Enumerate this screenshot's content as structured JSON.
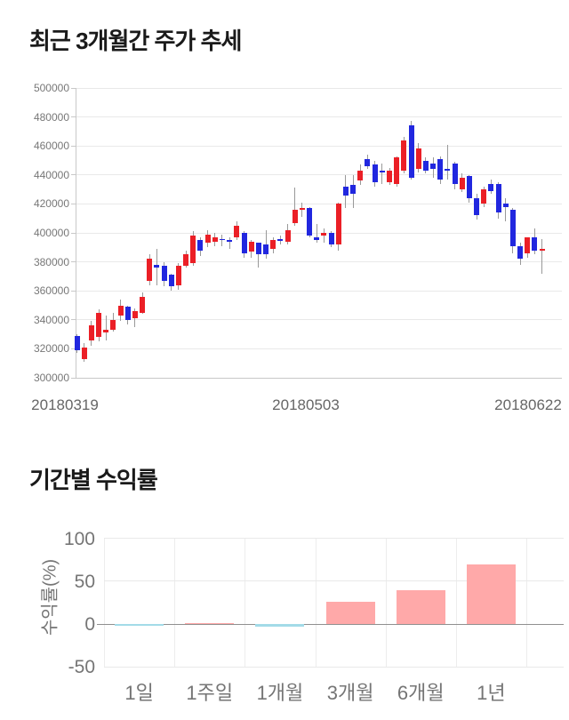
{
  "price_chart": {
    "title": "최근 3개월간 주가 추세"
  },
  "returns_chart": {
    "title": "기간별 수익률",
    "ylabel": "수익률(%)"
  },
  "chart_data": [
    {
      "type": "candlestick",
      "title": "최근 3개월간 주가 추세",
      "ylabel": "",
      "xlabel": "",
      "ylim": [
        300000,
        500000
      ],
      "y_tick_step": 20000,
      "y_ticks": [
        "500000",
        "480000",
        "460000",
        "440000",
        "420000",
        "400000",
        "380000",
        "360000",
        "340000",
        "320000",
        "300000"
      ],
      "x_ticks": [
        "20180319",
        "20180503",
        "20180622"
      ],
      "grid": true,
      "up_color": "#eb1f26",
      "down_color": "#2127df",
      "wick_color": "#999999",
      "candles_format": [
        "open",
        "high",
        "low",
        "close"
      ],
      "candles": [
        [
          329000,
          330000,
          317000,
          319000
        ],
        [
          313000,
          324000,
          311000,
          321000
        ],
        [
          326000,
          339000,
          322000,
          336000
        ],
        [
          328000,
          347000,
          325000,
          345000
        ],
        [
          331000,
          343000,
          326000,
          333000
        ],
        [
          333000,
          345000,
          332000,
          340000
        ],
        [
          343000,
          354000,
          339000,
          350000
        ],
        [
          349000,
          350000,
          337000,
          340000
        ],
        [
          341000,
          348000,
          335000,
          346000
        ],
        [
          345000,
          359000,
          344000,
          356000
        ],
        [
          367000,
          385000,
          364000,
          382000
        ],
        [
          378000,
          389000,
          364000,
          376000
        ],
        [
          377000,
          380000,
          363000,
          367000
        ],
        [
          371000,
          372000,
          360000,
          363000
        ],
        [
          364000,
          379000,
          361000,
          377000
        ],
        [
          377000,
          388000,
          376000,
          385000
        ],
        [
          379000,
          401000,
          377000,
          398000
        ],
        [
          395000,
          397000,
          384000,
          388000
        ],
        [
          393000,
          402000,
          390000,
          399000
        ],
        [
          394000,
          400000,
          391000,
          397000
        ],
        [
          396000,
          399000,
          391000,
          395000
        ],
        [
          395000,
          397000,
          389000,
          394000
        ],
        [
          397000,
          408000,
          395000,
          405000
        ],
        [
          400000,
          401000,
          383000,
          386000
        ],
        [
          387000,
          395000,
          383000,
          394000
        ],
        [
          393000,
          393000,
          376000,
          385000
        ],
        [
          392000,
          402000,
          382000,
          385000
        ],
        [
          389000,
          397000,
          386000,
          395000
        ],
        [
          396000,
          398000,
          392000,
          394500
        ],
        [
          394000,
          406000,
          392000,
          402000
        ],
        [
          407000,
          431000,
          405000,
          416000
        ],
        [
          416000,
          421000,
          411000,
          417000
        ],
        [
          417000,
          418000,
          397000,
          398000
        ],
        [
          397000,
          406000,
          393000,
          395000
        ],
        [
          398000,
          403000,
          393000,
          400000
        ],
        [
          400000,
          401000,
          390000,
          392000
        ],
        [
          392000,
          421000,
          388000,
          420000
        ],
        [
          432000,
          440000,
          417000,
          426000
        ],
        [
          433000,
          440000,
          417000,
          427000
        ],
        [
          436000,
          447000,
          433000,
          443000
        ],
        [
          451000,
          454000,
          444000,
          446000
        ],
        [
          447000,
          450000,
          432000,
          435000
        ],
        [
          443000,
          448000,
          434000,
          441500
        ],
        [
          435000,
          445000,
          433000,
          443000
        ],
        [
          434000,
          453000,
          432000,
          452000
        ],
        [
          443000,
          466000,
          441000,
          464000
        ],
        [
          474000,
          477000,
          437000,
          438000
        ],
        [
          444000,
          462000,
          442000,
          458000
        ],
        [
          450000,
          452000,
          441000,
          443000
        ],
        [
          448000,
          452000,
          438000,
          444000
        ],
        [
          451000,
          453000,
          434000,
          437000
        ],
        [
          444000,
          461000,
          437000,
          443000
        ],
        [
          448000,
          449000,
          430000,
          434000
        ],
        [
          430000,
          441000,
          428000,
          438000
        ],
        [
          439000,
          440000,
          421000,
          424000
        ],
        [
          424000,
          427000,
          409000,
          412000
        ],
        [
          420000,
          432000,
          418000,
          430000
        ],
        [
          434000,
          437000,
          427000,
          429000
        ],
        [
          434000,
          435000,
          410000,
          414000
        ],
        [
          420000,
          424000,
          408000,
          418000
        ],
        [
          416000,
          417000,
          386000,
          391000
        ],
        [
          391000,
          393000,
          378000,
          382000
        ],
        [
          386000,
          397000,
          383000,
          397000
        ],
        [
          397000,
          403000,
          385000,
          388000
        ],
        [
          388000,
          396000,
          372000,
          389000
        ]
      ]
    },
    {
      "type": "bar",
      "title": "기간별 수익률",
      "xlabel": "",
      "ylabel": "수익률(%)",
      "categories": [
        "1일",
        "1주일",
        "1개월",
        "3개월",
        "6개월",
        "1년"
      ],
      "values": [
        -2,
        0.3,
        -3,
        26,
        39,
        69
      ],
      "ylim": [
        -50,
        100
      ],
      "y_ticks": [
        100,
        50,
        0,
        -50
      ],
      "grid": true,
      "legend": false,
      "pos_color": "#ffa9a9",
      "neg_color": "#a3dbe8"
    }
  ]
}
